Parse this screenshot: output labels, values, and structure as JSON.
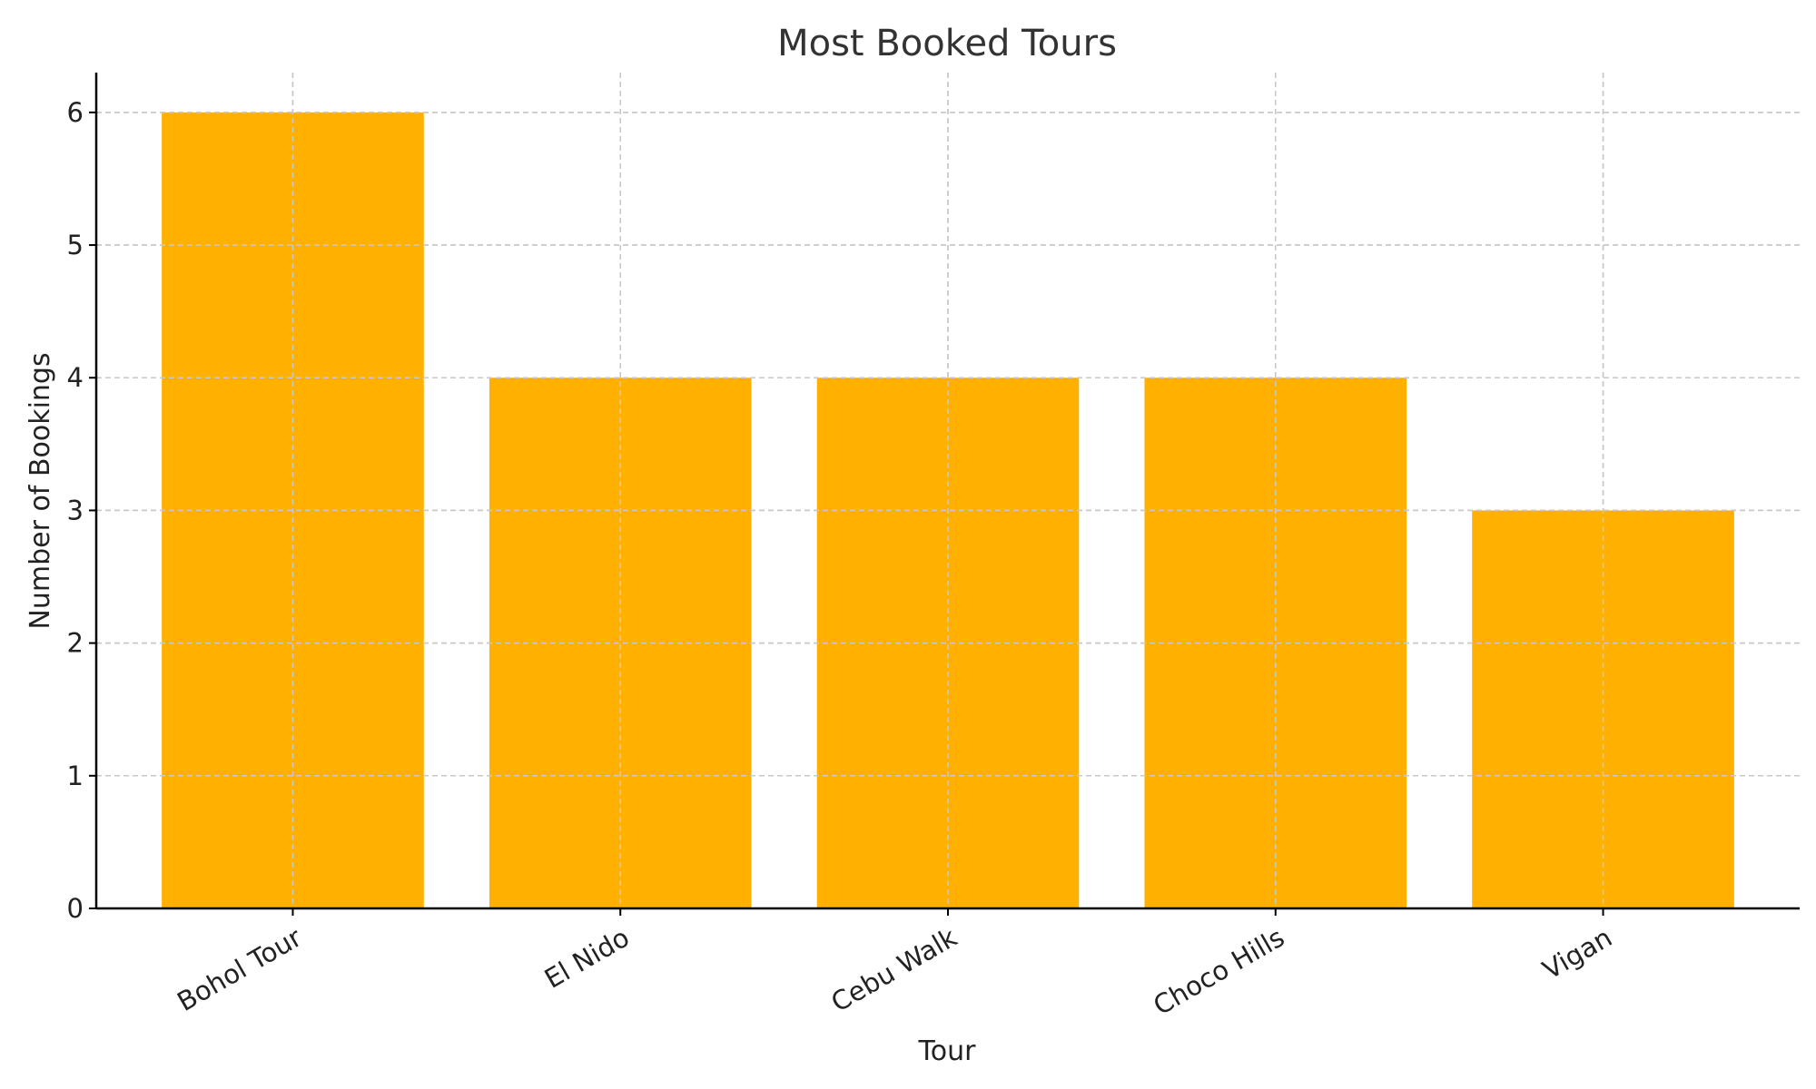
{
  "chart_data": {
    "type": "bar",
    "title": "Most Booked Tours",
    "xlabel": "Tour",
    "ylabel": "Number of Bookings",
    "categories": [
      "Bohol Tour",
      "El Nido",
      "Cebu Walk",
      "Choco Hills",
      "Vigan"
    ],
    "values": [
      6,
      4,
      4,
      4,
      3
    ],
    "ylim": [
      0,
      6.3
    ],
    "yticks": [
      0,
      1,
      2,
      3,
      4,
      5,
      6
    ],
    "grid": true,
    "bar_color": "#FFB000",
    "tick_label_rotation": "30 degrees"
  }
}
